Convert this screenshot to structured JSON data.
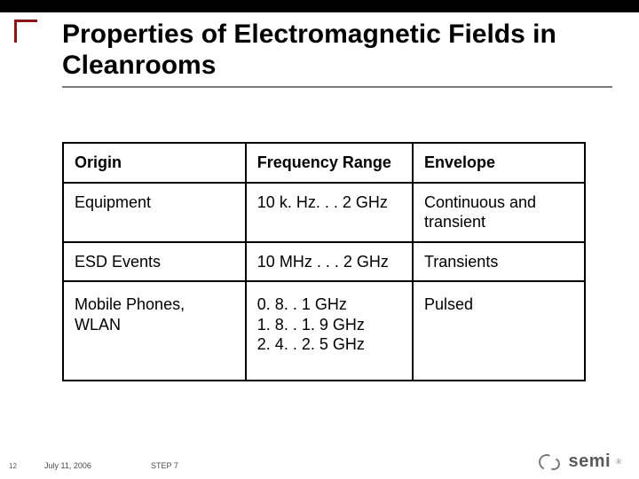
{
  "slide": {
    "title": "Properties of Electromagnetic Fields in Cleanrooms",
    "accent_color": "#8a1616",
    "topbar_color": "#000000",
    "underline_color": "#7a7a7a",
    "title_fontsize": 30
  },
  "table": {
    "type": "table",
    "columns": [
      "Origin",
      "Frequency Range",
      "Envelope"
    ],
    "column_widths_pct": [
      35,
      32,
      33
    ],
    "border_color": "#000000",
    "cell_fontsize": 18,
    "header_fontweight": "bold",
    "rows": [
      {
        "origin": "Equipment",
        "freq": "10 k. Hz. . . 2 GHz",
        "env": "Continuous and transient"
      },
      {
        "origin": "ESD Events",
        "freq": "10 MHz . . . 2 GHz",
        "env": "Transients"
      },
      {
        "origin": "Mobile Phones, WLAN",
        "freq": "0. 8. . 1 GHz\n1. 8. . 1. 9 GHz\n2. 4. . 2. 5 GHz",
        "env": "Pulsed"
      }
    ]
  },
  "footer": {
    "page_number": "12",
    "date": "July 11, 2006",
    "step": "STEP 7",
    "logo_text": "semi",
    "logo_color": "#5a5a5a"
  }
}
